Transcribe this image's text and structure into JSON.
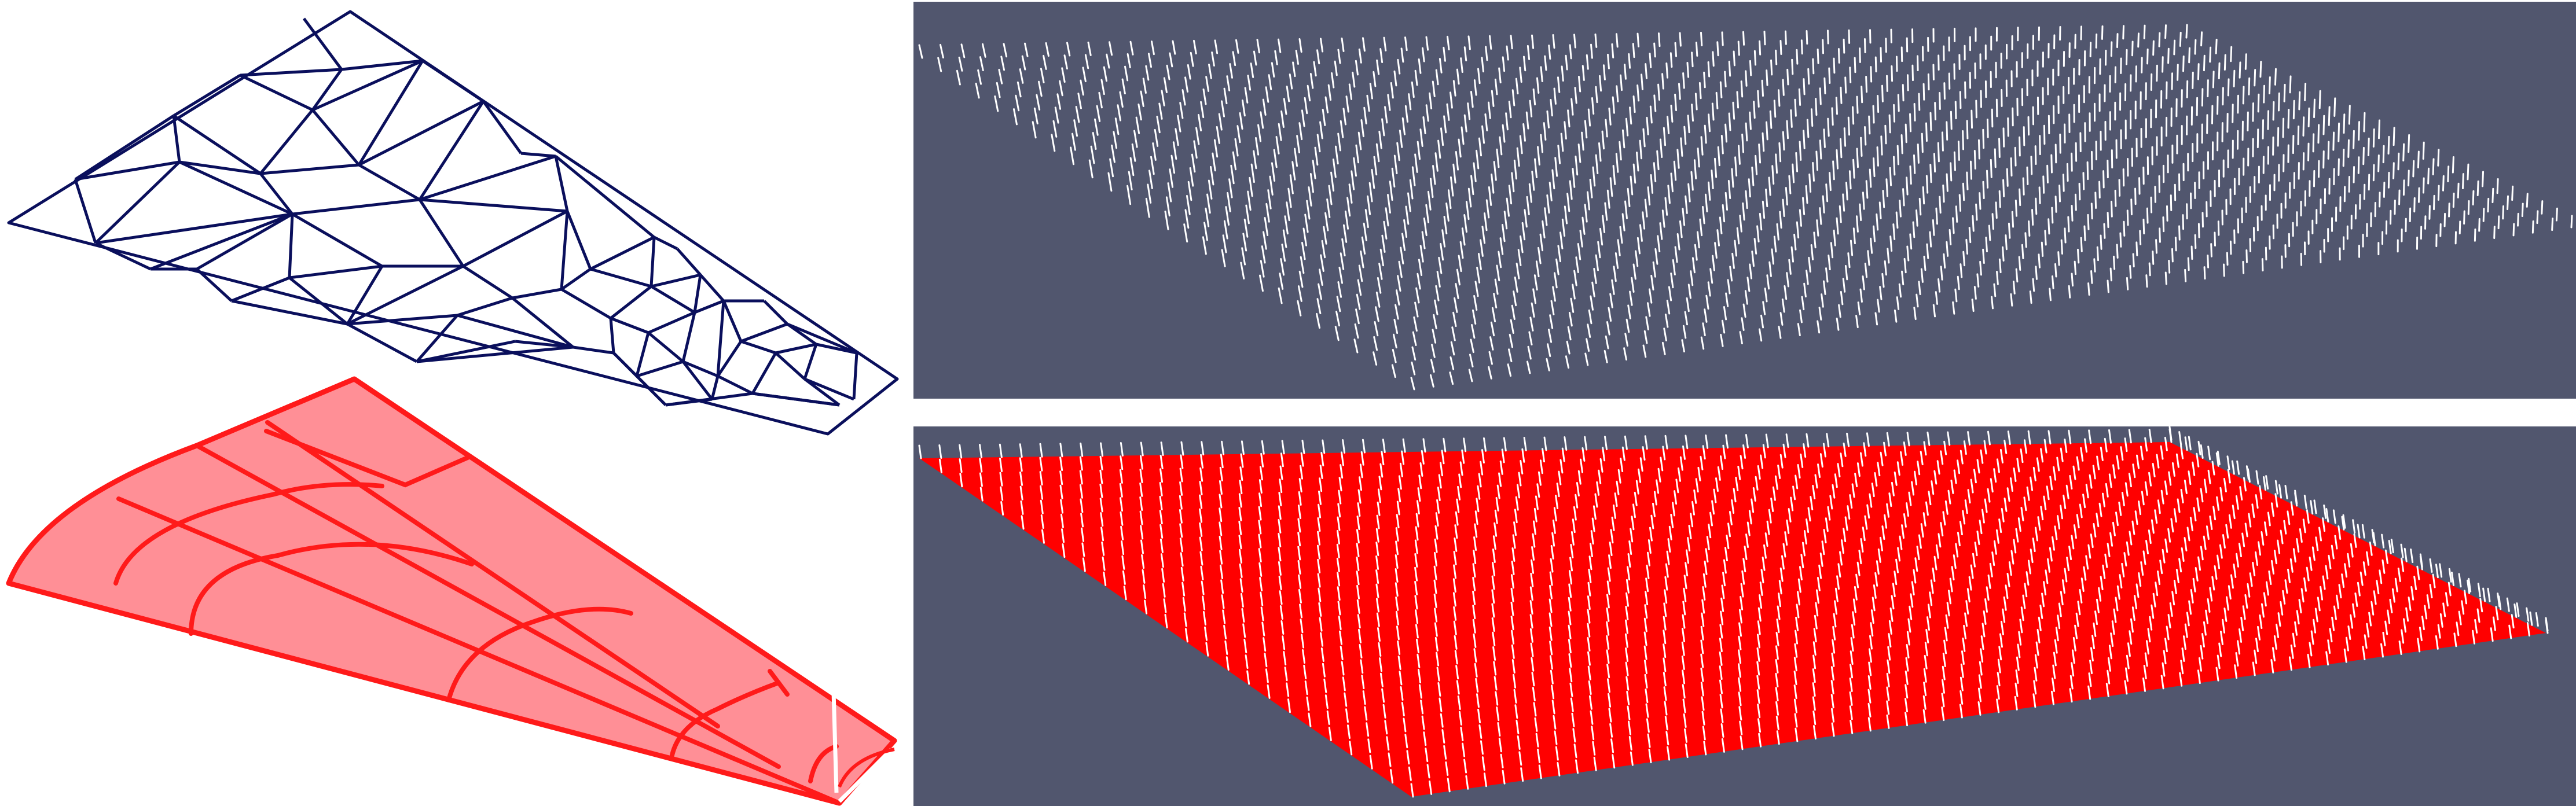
{
  "colors": {
    "mesh_stroke": "#0a0f5c",
    "surface_stroke": "#ff1a1a",
    "surface_fill": "#ff8f96",
    "viewport_bg": "#51566e",
    "glyph": "#ffffff",
    "surface_red": "#ff0000"
  },
  "panels": [
    {
      "id": "triangular-mesh",
      "description_visible": false
    },
    {
      "id": "curved-quad-surface",
      "description_visible": false
    },
    {
      "id": "viewport-top",
      "description_visible": false
    },
    {
      "id": "viewport-bottom",
      "description_visible": false
    }
  ]
}
